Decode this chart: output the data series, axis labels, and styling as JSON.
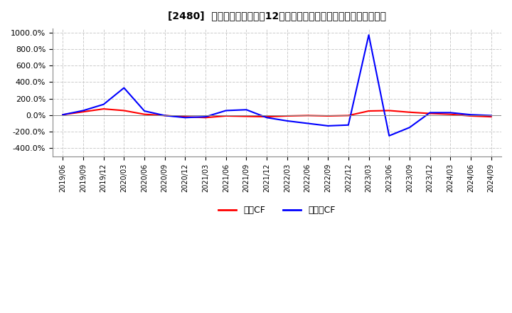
{
  "title": "[2480]  キャッシュフローの12か月移動合計の対前年同期増減率の推移",
  "ylim": [
    -500,
    1050
  ],
  "yticks": [
    -400,
    -200,
    0,
    200,
    400,
    600,
    800,
    1000
  ],
  "ytick_labels": [
    "-400.0%",
    "-200.0%",
    "0.0%",
    "200.0%",
    "400.0%",
    "600.0%",
    "800.0%",
    "1000.0%"
  ],
  "background_color": "#ffffff",
  "plot_bg_color": "#ffffff",
  "grid_color": "#cccccc",
  "営業CF_color": "#ff0000",
  "フリーCF_color": "#0000ff",
  "x_labels": [
    "2019/06",
    "2019/09",
    "2019/12",
    "2020/03",
    "2020/06",
    "2020/09",
    "2020/12",
    "2021/03",
    "2021/06",
    "2021/09",
    "2021/12",
    "2022/03",
    "2022/06",
    "2022/09",
    "2022/12",
    "2023/03",
    "2023/06",
    "2023/09",
    "2023/12",
    "2024/03",
    "2024/06",
    "2024/09"
  ],
  "営業CF": [
    5,
    40,
    75,
    55,
    10,
    -5,
    -20,
    -30,
    -10,
    -15,
    -20,
    -10,
    -5,
    -10,
    -5,
    50,
    55,
    35,
    20,
    10,
    -10,
    -20
  ],
  "フリーCF": [
    5,
    55,
    130,
    330,
    50,
    -5,
    -30,
    -20,
    55,
    65,
    -30,
    -70,
    -100,
    -130,
    -120,
    970,
    -250,
    -150,
    30,
    30,
    5,
    -5
  ]
}
